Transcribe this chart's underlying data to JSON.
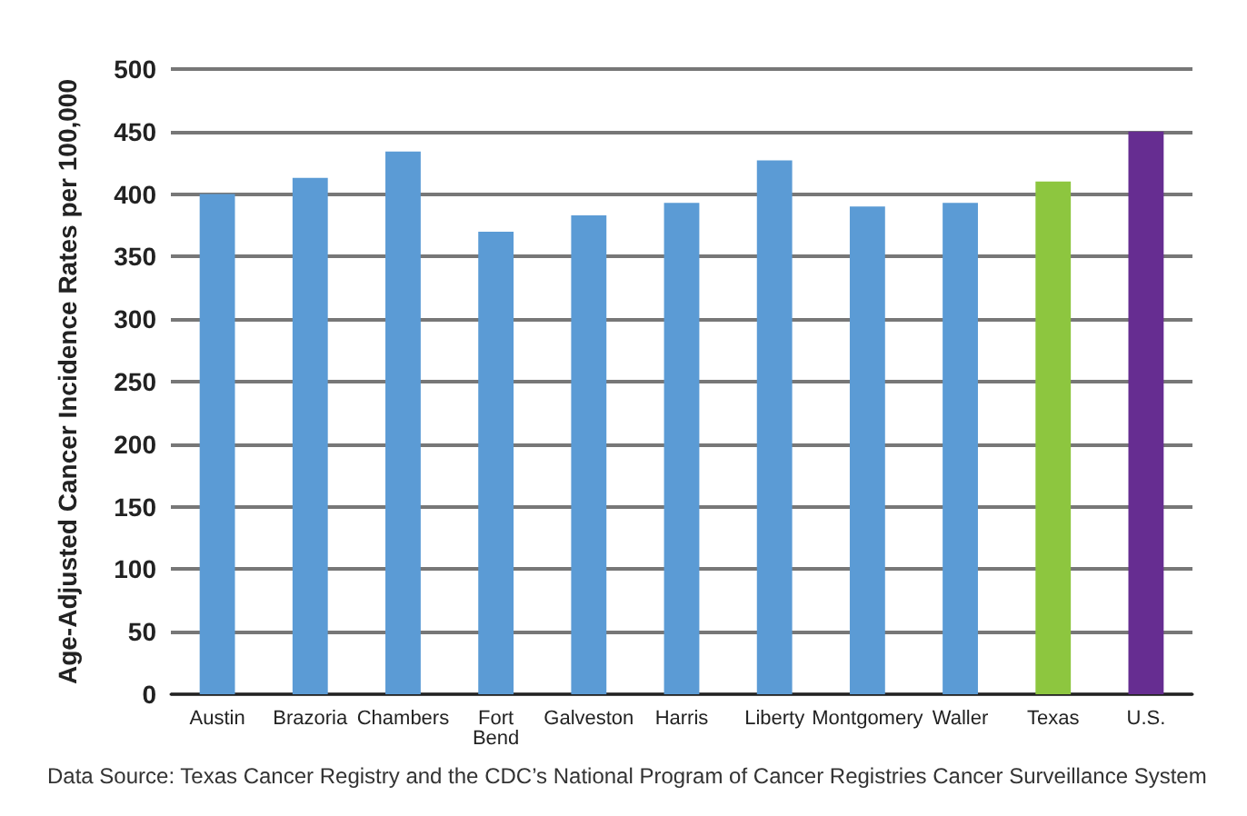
{
  "chart_data": {
    "type": "bar",
    "ylabel": "Age-Adjusted Cancer Incidence Rates per 100,000",
    "categories": [
      "Austin",
      "Brazoria",
      "Chambers",
      "Fort Bend",
      "Galveston",
      "Harris",
      "Liberty",
      "Montgomery",
      "Waller",
      "Texas",
      "U.S."
    ],
    "values": [
      400,
      413,
      434,
      370,
      383,
      393,
      427,
      390,
      393,
      410,
      450
    ],
    "colors": [
      "#5b9bd5",
      "#5b9bd5",
      "#5b9bd5",
      "#5b9bd5",
      "#5b9bd5",
      "#5b9bd5",
      "#5b9bd5",
      "#5b9bd5",
      "#5b9bd5",
      "#8dc63f",
      "#662d91"
    ],
    "ylim": [
      0,
      500
    ],
    "yticks": [
      0,
      50,
      100,
      150,
      200,
      250,
      300,
      350,
      400,
      450,
      500
    ],
    "grid": "y",
    "annotations": [
      "Data Source: Texas Cancer Registry and the CDC’s National Program of Cancer Registries Cancer Surveillance System"
    ]
  }
}
